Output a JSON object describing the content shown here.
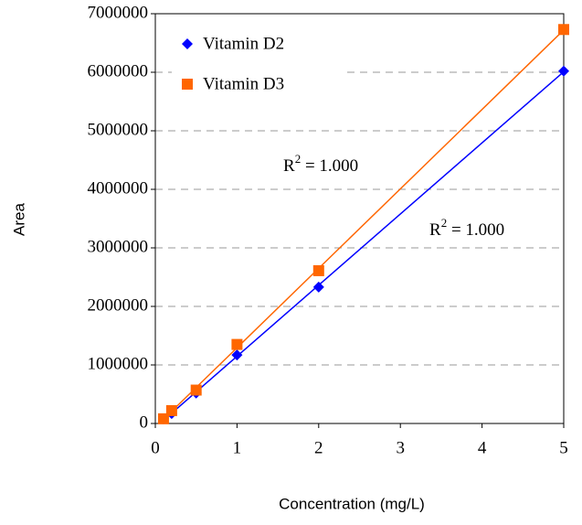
{
  "chart_data": {
    "type": "scatter",
    "x_label": "Concentration (mg/L)",
    "y_label": "Area",
    "xlim": [
      0,
      5
    ],
    "xticks": [
      0,
      1,
      2,
      3,
      4,
      5
    ],
    "ylim": [
      0,
      7000000
    ],
    "yticks": [
      0,
      1000000,
      2000000,
      3000000,
      4000000,
      5000000,
      6000000,
      7000000
    ],
    "grid": true,
    "legend": "upper-left",
    "trendline": "linear",
    "series": [
      {
        "name": "Vitamin D2",
        "color": "#0000ff",
        "marker": "diamond",
        "x": [
          0.1,
          0.2,
          0.5,
          1,
          2,
          5
        ],
        "values": [
          80000,
          170000,
          520000,
          1170000,
          2330000,
          6020000
        ]
      },
      {
        "name": "Vitamin D3",
        "color": "#ff6600",
        "marker": "square",
        "x": [
          0.1,
          0.2,
          0.5,
          1,
          2,
          5
        ],
        "values": [
          80000,
          220000,
          570000,
          1350000,
          2610000,
          6730000
        ]
      }
    ],
    "annotations": [
      {
        "base": "R",
        "sup": "2",
        "rest": " = 1.000"
      },
      {
        "base": "R",
        "sup": "2",
        "rest": " = 1.000"
      }
    ]
  }
}
